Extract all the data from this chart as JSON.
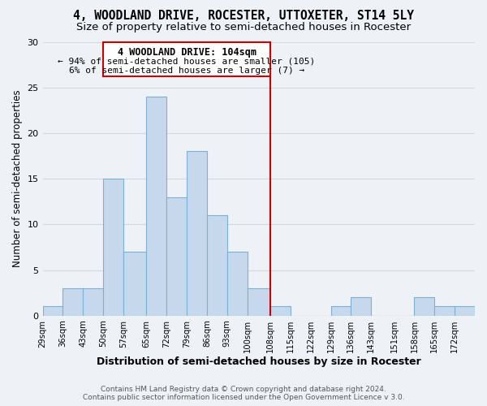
{
  "title": "4, WOODLAND DRIVE, ROCESTER, UTTOXETER, ST14 5LY",
  "subtitle": "Size of property relative to semi-detached houses in Rocester",
  "xlabel": "Distribution of semi-detached houses by size in Rocester",
  "ylabel": "Number of semi-detached properties",
  "footer_line1": "Contains HM Land Registry data © Crown copyright and database right 2024.",
  "footer_line2": "Contains public sector information licensed under the Open Government Licence v 3.0.",
  "bin_labels": [
    "29sqm",
    "36sqm",
    "43sqm",
    "50sqm",
    "57sqm",
    "65sqm",
    "72sqm",
    "79sqm",
    "86sqm",
    "93sqm",
    "100sqm",
    "108sqm",
    "115sqm",
    "122sqm",
    "129sqm",
    "136sqm",
    "143sqm",
    "151sqm",
    "158sqm",
    "165sqm",
    "172sqm"
  ],
  "bin_edges": [
    29,
    36,
    43,
    50,
    57,
    65,
    72,
    79,
    86,
    93,
    100,
    108,
    115,
    122,
    129,
    136,
    143,
    151,
    158,
    165,
    172,
    179
  ],
  "counts": [
    1,
    3,
    3,
    15,
    7,
    24,
    13,
    18,
    11,
    7,
    3,
    1,
    0,
    0,
    1,
    2,
    0,
    0,
    2,
    1,
    1
  ],
  "bar_color": "#c6d9ec",
  "bar_edge_color": "#7bafd4",
  "vline_x": 108,
  "vline_color": "#cc0000",
  "annotation_title": "4 WOODLAND DRIVE: 104sqm",
  "annotation_line1": "← 94% of semi-detached houses are smaller (105)",
  "annotation_line2": "6% of semi-detached houses are larger (7) →",
  "annotation_box_color": "#ffffff",
  "annotation_box_edge": "#cc0000",
  "ylim": [
    0,
    30
  ],
  "yticks": [
    0,
    5,
    10,
    15,
    20,
    25,
    30
  ],
  "grid_color": "#d0d8e0",
  "background_color": "#eef2f7",
  "title_fontsize": 10.5,
  "subtitle_fontsize": 9.5
}
